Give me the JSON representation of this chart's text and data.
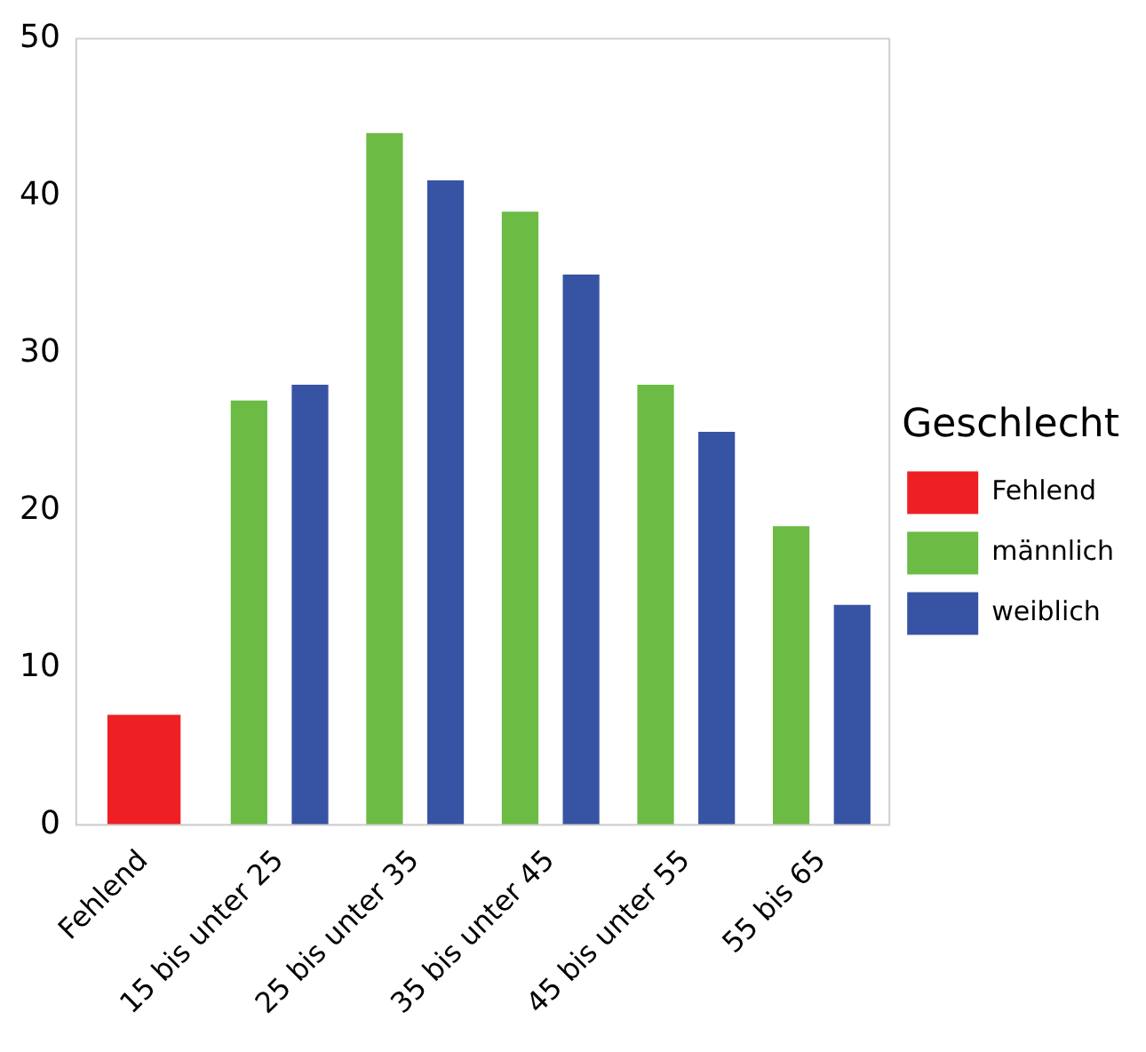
{
  "chart_data": {
    "type": "bar",
    "categories": [
      "Fehlend",
      "15 bis unter 25",
      "25 bis unter 35",
      "35 bis unter 45",
      "45 bis unter 55",
      "55 bis 65"
    ],
    "series": [
      {
        "name": "Fehlend",
        "color": "#ee2024",
        "values": [
          7,
          null,
          null,
          null,
          null,
          null
        ]
      },
      {
        "name": "männlich",
        "color": "#6bbb44",
        "values": [
          null,
          27,
          44,
          39,
          28,
          19
        ]
      },
      {
        "name": "weiblich",
        "color": "#3753a4",
        "values": [
          null,
          28,
          41,
          35,
          25,
          14
        ]
      }
    ],
    "legend_title": "Geschlecht",
    "legend": "right",
    "ylim": [
      0,
      50
    ],
    "yticks": [
      0,
      10,
      20,
      30,
      40,
      50
    ],
    "grid": false
  }
}
